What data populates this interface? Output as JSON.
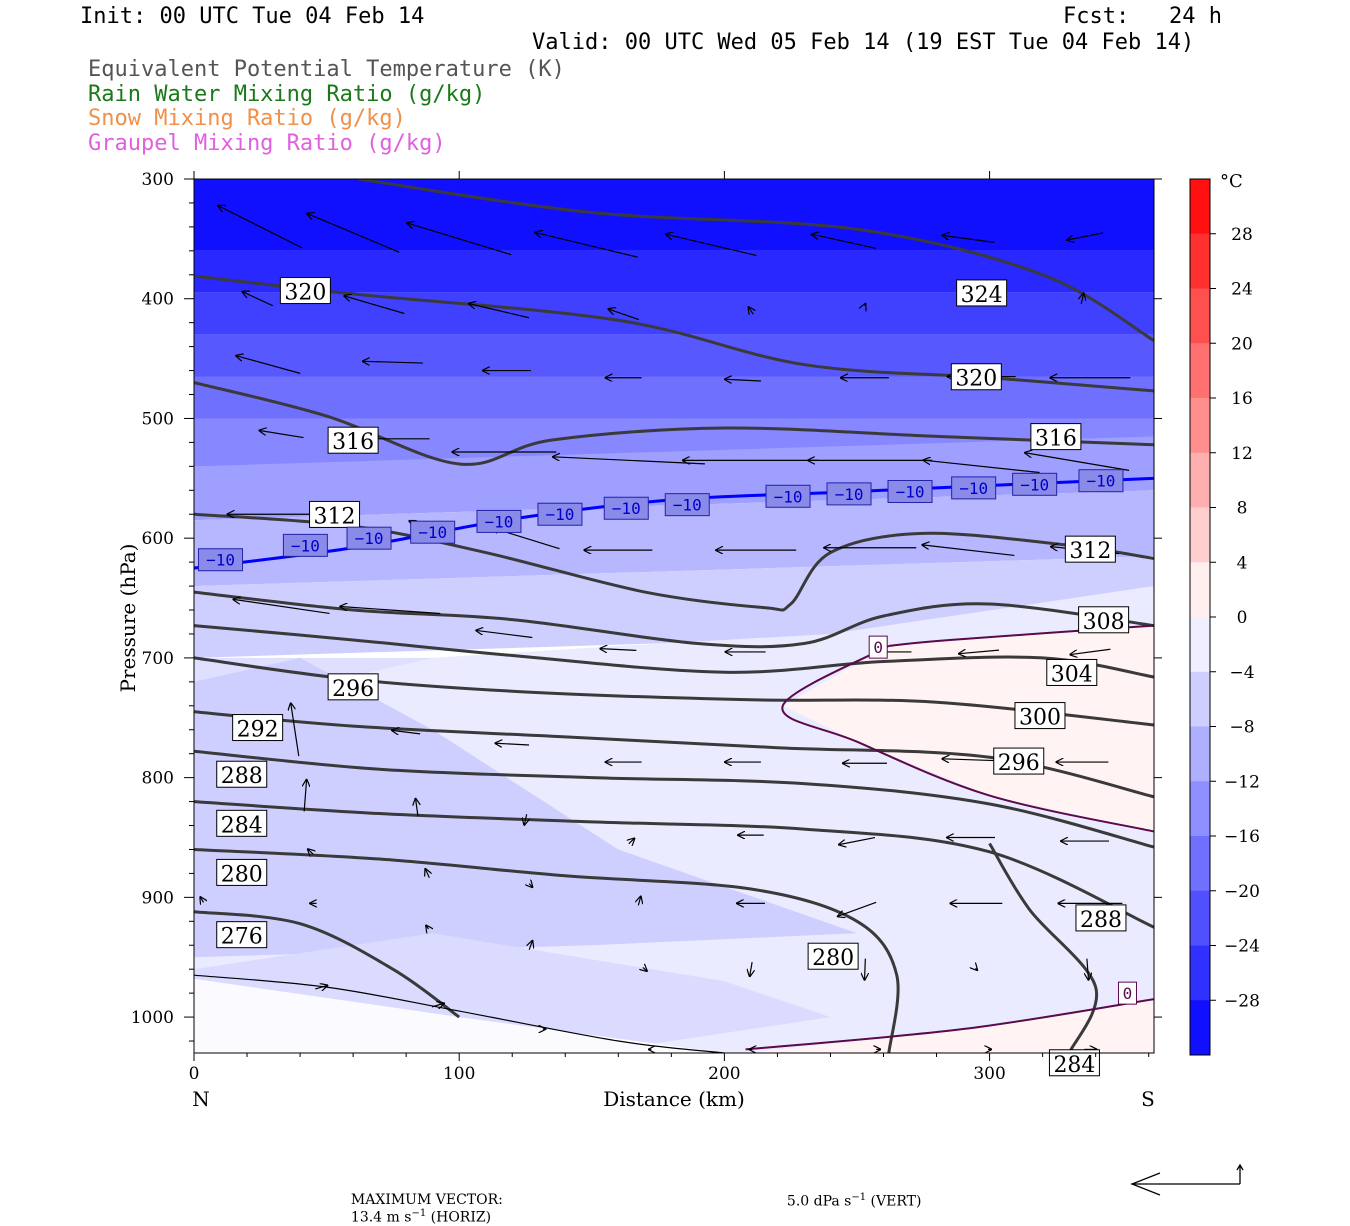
{
  "header": {
    "init": "Init: 00 UTC Tue 04 Feb 14",
    "fcst": "Fcst:   24 h",
    "valid": "Valid: 00 UTC Wed 05 Feb 14 (19 EST Tue 04 Feb 14)"
  },
  "legend": [
    {
      "text": "Equivalent Potential Temperature (K)",
      "color": "#555555"
    },
    {
      "text": "Rain Water Mixing Ratio (g/kg)",
      "color": "#1a7a1a"
    },
    {
      "text": "Snow Mixing Ratio (g/kg)",
      "color": "#f0904a"
    },
    {
      "text": "Graupel Mixing Ratio (g/kg)",
      "color": "#e060e0"
    }
  ],
  "colorbar": {
    "unit": "°C",
    "tick_labels": [
      "28",
      "24",
      "20",
      "16",
      "12",
      "8",
      "4",
      "0",
      "−4",
      "−8",
      "−12",
      "−16",
      "−20",
      "−24",
      "−28"
    ]
  },
  "footer": {
    "label": "MAXIMUM VECTOR:",
    "horiz": "13.4 m s",
    "horiz_exp": "−1",
    "horiz_unit": " (HORIZ)",
    "vert": "5.0 dPa s",
    "vert_exp": "−1",
    "vert_unit": " (VERT)"
  },
  "chart_data": {
    "type": "contour-cross-section",
    "xlabel": "Distance (km)",
    "ylabel": "Pressure (hPa)",
    "xlim": [
      0,
      362
    ],
    "ylim": [
      1030,
      300
    ],
    "x_ticks": [
      0,
      100,
      200,
      300
    ],
    "y_ticks": [
      300,
      400,
      500,
      600,
      700,
      800,
      900,
      1000
    ],
    "x_endpoints": {
      "left": "N",
      "right": "S"
    },
    "temperature_fill": {
      "unit": "°C",
      "levels": [
        -28,
        -24,
        -20,
        -16,
        -12,
        -8,
        -4,
        0,
        4,
        8,
        12,
        16,
        20,
        24,
        28
      ],
      "colors": {
        "cold": "#0000ff",
        "neutral": "#ffffff",
        "warm": "#ff0000"
      }
    },
    "theta_e_contours": [
      {
        "value": 324,
        "points": [
          [
            62,
            300
          ],
          [
            150,
            328
          ],
          [
            250,
            342
          ],
          [
            320,
            380
          ],
          [
            362,
            435
          ]
        ]
      },
      {
        "value": 320,
        "points": [
          [
            0,
            381
          ],
          [
            60,
            396
          ],
          [
            160,
            418
          ],
          [
            230,
            455
          ],
          [
            300,
            466
          ],
          [
            362,
            477
          ]
        ]
      },
      {
        "value": 316,
        "points": [
          [
            0,
            470
          ],
          [
            50,
            498
          ],
          [
            100,
            538
          ],
          [
            135,
            518
          ],
          [
            200,
            508
          ],
          [
            280,
            515
          ],
          [
            362,
            522
          ]
        ]
      },
      {
        "value": 312,
        "points": [
          [
            0,
            580
          ],
          [
            60,
            590
          ],
          [
            110,
            612
          ],
          [
            170,
            645
          ],
          [
            215,
            658
          ],
          [
            225,
            655
          ],
          [
            240,
            612
          ],
          [
            275,
            596
          ],
          [
            330,
            606
          ],
          [
            362,
            617
          ]
        ]
      },
      {
        "value": 308,
        "points": [
          [
            0,
            645
          ],
          [
            60,
            660
          ],
          [
            120,
            668
          ],
          [
            190,
            688
          ],
          [
            230,
            688
          ],
          [
            260,
            665
          ],
          [
            300,
            655
          ],
          [
            362,
            673
          ]
        ]
      },
      {
        "value": 304,
        "points": [
          [
            0,
            673
          ],
          [
            60,
            685
          ],
          [
            120,
            698
          ],
          [
            200,
            712
          ],
          [
            260,
            703
          ],
          [
            320,
            700
          ],
          [
            362,
            716
          ]
        ]
      },
      {
        "value": 300,
        "points": [
          [
            0,
            700
          ],
          [
            60,
            718
          ],
          [
            130,
            729
          ],
          [
            210,
            735
          ],
          [
            280,
            737
          ],
          [
            362,
            756
          ]
        ]
      },
      {
        "value": 296,
        "points": [
          [
            0,
            745
          ],
          [
            60,
            757
          ],
          [
            140,
            766
          ],
          [
            220,
            775
          ],
          [
            300,
            783
          ],
          [
            362,
            816
          ]
        ]
      },
      {
        "value": 292,
        "points": [
          [
            0,
            778
          ],
          [
            70,
            793
          ],
          [
            150,
            800
          ],
          [
            230,
            805
          ],
          [
            300,
            822
          ],
          [
            362,
            858
          ]
        ]
      },
      {
        "value": 288,
        "points": [
          [
            0,
            820
          ],
          [
            70,
            830
          ],
          [
            150,
            837
          ],
          [
            230,
            843
          ],
          [
            300,
            862
          ],
          [
            362,
            925
          ]
        ]
      },
      {
        "value": 284,
        "points": [
          [
            0,
            860
          ],
          [
            70,
            868
          ],
          [
            140,
            882
          ],
          [
            210,
            893
          ],
          [
            250,
            920
          ],
          [
            265,
            965
          ],
          [
            262,
            1030
          ]
        ]
      },
      {
        "value": 280,
        "points": [
          [
            0,
            912
          ],
          [
            40,
            922
          ],
          [
            75,
            960
          ],
          [
            100,
            1000
          ]
        ]
      },
      {
        "value": 284,
        "points": [
          [
            300,
            855
          ],
          [
            315,
            910
          ],
          [
            340,
            975
          ],
          [
            330,
            1030
          ]
        ]
      }
    ],
    "temperature_contours": [
      {
        "value": -10,
        "color": "#0000ff",
        "points": [
          [
            0,
            625
          ],
          [
            60,
            608
          ],
          [
            120,
            584
          ],
          [
            180,
            568
          ],
          [
            240,
            562
          ],
          [
            300,
            556
          ],
          [
            362,
            550
          ]
        ]
      },
      {
        "value": 0,
        "color": "#5a0a4a",
        "points": [
          [
            262,
            690
          ],
          [
            285,
            685
          ],
          [
            362,
            673
          ]
        ]
      },
      {
        "value": 0,
        "color": "#5a0a4a",
        "points": [
          [
            262,
            690
          ],
          [
            222,
            740
          ],
          [
            250,
            770
          ],
          [
            300,
            815
          ],
          [
            362,
            845
          ]
        ]
      },
      {
        "value": 0,
        "color": "#5a0a4a",
        "points": [
          [
            208,
            1027
          ],
          [
            290,
            1010
          ],
          [
            362,
            985
          ]
        ]
      }
    ],
    "contour_labels": [
      {
        "text": "324",
        "x": 297,
        "y": 396
      },
      {
        "text": "320",
        "x": 42,
        "y": 394
      },
      {
        "text": "320",
        "x": 295,
        "y": 466
      },
      {
        "text": "316",
        "x": 60,
        "y": 519
      },
      {
        "text": "316",
        "x": 325,
        "y": 516
      },
      {
        "text": "312",
        "x": 53,
        "y": 581
      },
      {
        "text": "312",
        "x": 338,
        "y": 610
      },
      {
        "text": "308",
        "x": 343,
        "y": 669
      },
      {
        "text": "304",
        "x": 331,
        "y": 713
      },
      {
        "text": "300",
        "x": 319,
        "y": 749
      },
      {
        "text": "296",
        "x": 60,
        "y": 725
      },
      {
        "text": "296",
        "x": 311,
        "y": 787
      },
      {
        "text": "292",
        "x": 24,
        "y": 759
      },
      {
        "text": "288",
        "x": 18,
        "y": 798
      },
      {
        "text": "288",
        "x": 342,
        "y": 918
      },
      {
        "text": "284",
        "x": 18,
        "y": 839
      },
      {
        "text": "284",
        "x": 332,
        "y": 1039
      },
      {
        "text": "280",
        "x": 18,
        "y": 880
      },
      {
        "text": "280",
        "x": 241,
        "y": 950
      },
      {
        "text": "276",
        "x": 18,
        "y": 932
      }
    ],
    "minus10_labels": [
      [
        10,
        618
      ],
      [
        42,
        606
      ],
      [
        66,
        600
      ],
      [
        90,
        595
      ],
      [
        115,
        586
      ],
      [
        138,
        580
      ],
      [
        163,
        575
      ],
      [
        186,
        572
      ],
      [
        224,
        565
      ],
      [
        247,
        563
      ],
      [
        270,
        561
      ],
      [
        294,
        558
      ],
      [
        317,
        555
      ],
      [
        342,
        552
      ]
    ],
    "zero_labels": [
      [
        258,
        691
      ],
      [
        352,
        980
      ]
    ],
    "wind_vectors": [
      {
        "x": 25,
        "p": 340,
        "u": -10.5,
        "w": 1.2
      },
      {
        "x": 60,
        "p": 345,
        "u": -11.5,
        "w": 1.1
      },
      {
        "x": 100,
        "p": 350,
        "u": -13,
        "w": 0.9
      },
      {
        "x": 148,
        "p": 355,
        "u": -12.8,
        "w": 0.7
      },
      {
        "x": 195,
        "p": 355,
        "u": -11.3,
        "w": 0.6
      },
      {
        "x": 245,
        "p": 352,
        "u": -8,
        "w": 0.4
      },
      {
        "x": 292,
        "p": 350,
        "u": -6.5,
        "w": 0.2
      },
      {
        "x": 336,
        "p": 348,
        "u": -4.5,
        "w": -0.2
      },
      {
        "x": 24,
        "p": 400,
        "u": -3.8,
        "w": 0.4
      },
      {
        "x": 68,
        "p": 405,
        "u": -7.5,
        "w": 0.5
      },
      {
        "x": 115,
        "p": 410,
        "u": -7.5,
        "w": 0.4
      },
      {
        "x": 162,
        "p": 413,
        "u": -3.8,
        "w": 0.3
      },
      {
        "x": 210,
        "p": 410,
        "u": -0.6,
        "w": 0.2
      },
      {
        "x": 253,
        "p": 405,
        "u": 0.1,
        "w": 0.05
      },
      {
        "x": 335,
        "p": 400,
        "u": 0.3,
        "w": 0.3
      },
      {
        "x": 28,
        "p": 455,
        "u": -8,
        "w": 0.5
      },
      {
        "x": 75,
        "p": 453,
        "u": -7.5,
        "w": 0.05
      },
      {
        "x": 118,
        "p": 460,
        "u": -6,
        "w": 0
      },
      {
        "x": 162,
        "p": 466,
        "u": -4.5,
        "w": 0
      },
      {
        "x": 207,
        "p": 468,
        "u": -4.5,
        "w": 0.05
      },
      {
        "x": 253,
        "p": 466,
        "u": -6,
        "w": 0
      },
      {
        "x": 297,
        "p": 465,
        "u": -8.5,
        "w": 0
      },
      {
        "x": 338,
        "p": 466,
        "u": -10,
        "w": 0
      },
      {
        "x": 33,
        "p": 513,
        "u": -5.5,
        "w": 0.2
      },
      {
        "x": 76,
        "p": 517,
        "u": -8.5,
        "w": 0
      },
      {
        "x": 117,
        "p": 528,
        "u": -13,
        "w": 0
      },
      {
        "x": 164,
        "p": 535,
        "u": -19,
        "w": 0.2
      },
      {
        "x": 210,
        "p": 535,
        "u": -17,
        "w": 0
      },
      {
        "x": 255,
        "p": 535,
        "u": -15.5,
        "w": 0
      },
      {
        "x": 297,
        "p": 540,
        "u": -14.5,
        "w": 0.35
      },
      {
        "x": 333,
        "p": 536,
        "u": -13,
        "w": 0.5
      },
      {
        "x": 30,
        "p": 580,
        "u": -11.5,
        "w": 0
      },
      {
        "x": 85,
        "p": 590,
        "u": -2.5,
        "w": 0.3
      },
      {
        "x": 125,
        "p": 600,
        "u": -8.5,
        "w": 0.6
      },
      {
        "x": 160,
        "p": 610,
        "u": -8.5,
        "w": 0
      },
      {
        "x": 212,
        "p": 610,
        "u": -10,
        "w": 0
      },
      {
        "x": 255,
        "p": 608,
        "u": -11.5,
        "w": 0
      },
      {
        "x": 292,
        "p": 610,
        "u": -11.5,
        "w": 0.3
      },
      {
        "x": 336,
        "p": 610,
        "u": -8.5,
        "w": 0.2
      },
      {
        "x": 33,
        "p": 657,
        "u": -12,
        "w": 0.4
      },
      {
        "x": 74,
        "p": 660,
        "u": -12.5,
        "w": 0.2
      },
      {
        "x": 117,
        "p": 680,
        "u": -7,
        "w": 0.2
      },
      {
        "x": 160,
        "p": 693,
        "u": -4.5,
        "w": 0.05
      },
      {
        "x": 208,
        "p": 695,
        "u": -5,
        "w": 0
      },
      {
        "x": 263,
        "p": 695,
        "u": -5,
        "w": 0
      },
      {
        "x": 296,
        "p": 695,
        "u": -5,
        "w": -0.1
      },
      {
        "x": 338,
        "p": 695,
        "u": -5,
        "w": -0.15
      },
      {
        "x": 38,
        "p": 760,
        "u": -1,
        "w": 1.5
      },
      {
        "x": 80,
        "p": 762,
        "u": -3.5,
        "w": 0.1
      },
      {
        "x": 120,
        "p": 772,
        "u": -4.2,
        "w": 0.05
      },
      {
        "x": 162,
        "p": 787,
        "u": -4.5,
        "w": 0
      },
      {
        "x": 207,
        "p": 787,
        "u": -4.5,
        "w": 0
      },
      {
        "x": 253,
        "p": 788,
        "u": -5.5,
        "w": 0
      },
      {
        "x": 292,
        "p": 785,
        "u": -6.5,
        "w": 0.05
      },
      {
        "x": 335,
        "p": 787,
        "u": -6.5,
        "w": 0
      },
      {
        "x": 42,
        "p": 815,
        "u": 0.3,
        "w": 0.9
      },
      {
        "x": 84,
        "p": 825,
        "u": -0.3,
        "w": 0.5
      },
      {
        "x": 125,
        "p": 835,
        "u": -0.3,
        "w": -0.3
      },
      {
        "x": 165,
        "p": 853,
        "u": 0.7,
        "w": 0.15
      },
      {
        "x": 210,
        "p": 848,
        "u": -3.2,
        "w": 0
      },
      {
        "x": 250,
        "p": 853,
        "u": -4.5,
        "w": -0.2
      },
      {
        "x": 293,
        "p": 850,
        "u": -6,
        "w": 0
      },
      {
        "x": 336,
        "p": 853,
        "u": -6,
        "w": 0
      },
      {
        "x": 44,
        "p": 862,
        "u": -0.7,
        "w": 0.15
      },
      {
        "x": 88,
        "p": 880,
        "u": -0.5,
        "w": 0.25
      },
      {
        "x": 127,
        "p": 890,
        "u": 0.4,
        "w": -0.1
      },
      {
        "x": 168,
        "p": 903,
        "u": 0.3,
        "w": 0.25
      },
      {
        "x": 210,
        "p": 905,
        "u": -3.5,
        "w": 0
      },
      {
        "x": 250,
        "p": 910,
        "u": -4.8,
        "w": -0.4
      },
      {
        "x": 295,
        "p": 905,
        "u": -6.5,
        "w": 0
      },
      {
        "x": 338,
        "p": 905,
        "u": -8,
        "w": 0
      },
      {
        "x": 3,
        "p": 902,
        "u": -0.4,
        "w": 0.15
      },
      {
        "x": 45,
        "p": 905,
        "u": -0.8,
        "w": 0
      },
      {
        "x": 88,
        "p": 925,
        "u": -0.3,
        "w": 0.1
      },
      {
        "x": 127,
        "p": 940,
        "u": 0.4,
        "w": 0.25
      },
      {
        "x": 170,
        "p": 960,
        "u": 0.5,
        "w": -0.1
      },
      {
        "x": 210,
        "p": 960,
        "u": -0.3,
        "w": -0.4
      },
      {
        "x": 253,
        "p": 960,
        "u": -0.1,
        "w": -0.6
      },
      {
        "x": 295,
        "p": 960,
        "u": 0.2,
        "w": -0.05
      },
      {
        "x": 337,
        "p": 960,
        "u": 0.2,
        "w": -0.6
      },
      {
        "x": 48,
        "p": 975,
        "u": 1.5,
        "w": 0.1
      },
      {
        "x": 92,
        "p": 990,
        "u": 1.5,
        "w": 0.1
      },
      {
        "x": 132,
        "p": 1010,
        "u": 0.3,
        "w": 0
      },
      {
        "x": 172,
        "p": 1027,
        "u": -0.3,
        "w": 0
      },
      {
        "x": 210,
        "p": 1027,
        "u": -0.3,
        "w": 0
      },
      {
        "x": 258,
        "p": 1027,
        "u": 0.5,
        "w": 0
      },
      {
        "x": 300,
        "p": 1027,
        "u": 0.4,
        "w": 0
      },
      {
        "x": 338,
        "p": 1027,
        "u": 1.5,
        "w": 0
      }
    ],
    "max_vector": {
      "horiz_m_s": 13.4,
      "vert_dPa_s": 5.0
    }
  }
}
